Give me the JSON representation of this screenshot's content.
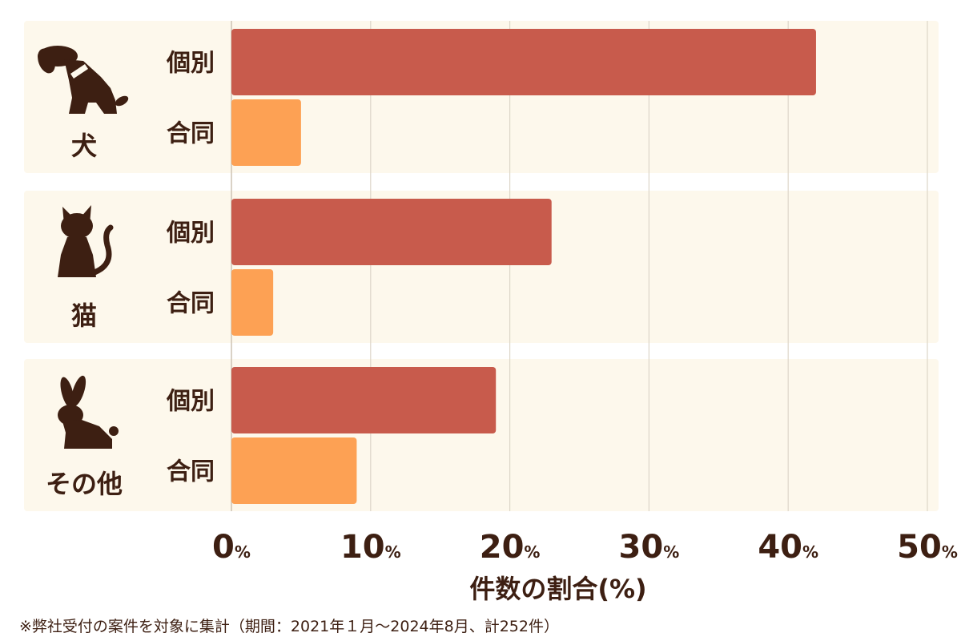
{
  "colors": {
    "panel": "#fdf8ec",
    "grid": "#ddd6c9",
    "individual": "#c85b4c",
    "joint": "#fda154",
    "text": "#3d1f12"
  },
  "chart_data": {
    "type": "bar",
    "orientation": "horizontal",
    "xlabel": "件数の割合(%)",
    "xlim": [
      0,
      50
    ],
    "xticks": [
      {
        "value": 0,
        "num": "0",
        "unit": "%"
      },
      {
        "value": 10,
        "num": "10",
        "unit": "%"
      },
      {
        "value": 20,
        "num": "20",
        "unit": "%"
      },
      {
        "value": 30,
        "num": "30",
        "unit": "%"
      },
      {
        "value": 40,
        "num": "40",
        "unit": "%"
      },
      {
        "value": 50,
        "num": "50",
        "unit": "%"
      }
    ],
    "grid": true,
    "series": [
      {
        "name": "個別",
        "values": [
          42,
          23,
          19
        ]
      },
      {
        "name": "合同",
        "values": [
          5,
          3,
          9
        ]
      }
    ],
    "groups": [
      {
        "label": "犬",
        "icon": "dog-icon",
        "bars": [
          {
            "label": "個別",
            "value": 42
          },
          {
            "label": "合同",
            "value": 5
          }
        ]
      },
      {
        "label": "猫",
        "icon": "cat-icon",
        "bars": [
          {
            "label": "個別",
            "value": 23
          },
          {
            "label": "合同",
            "value": 3
          }
        ]
      },
      {
        "label": "その他",
        "icon": "rabbit-icon",
        "bars": [
          {
            "label": "個別",
            "value": 19
          },
          {
            "label": "合同",
            "value": 9
          }
        ]
      }
    ]
  },
  "footnote": "※弊社受付の案件を対象に集計（期間：2021年１月～2024年8月、計252件）"
}
